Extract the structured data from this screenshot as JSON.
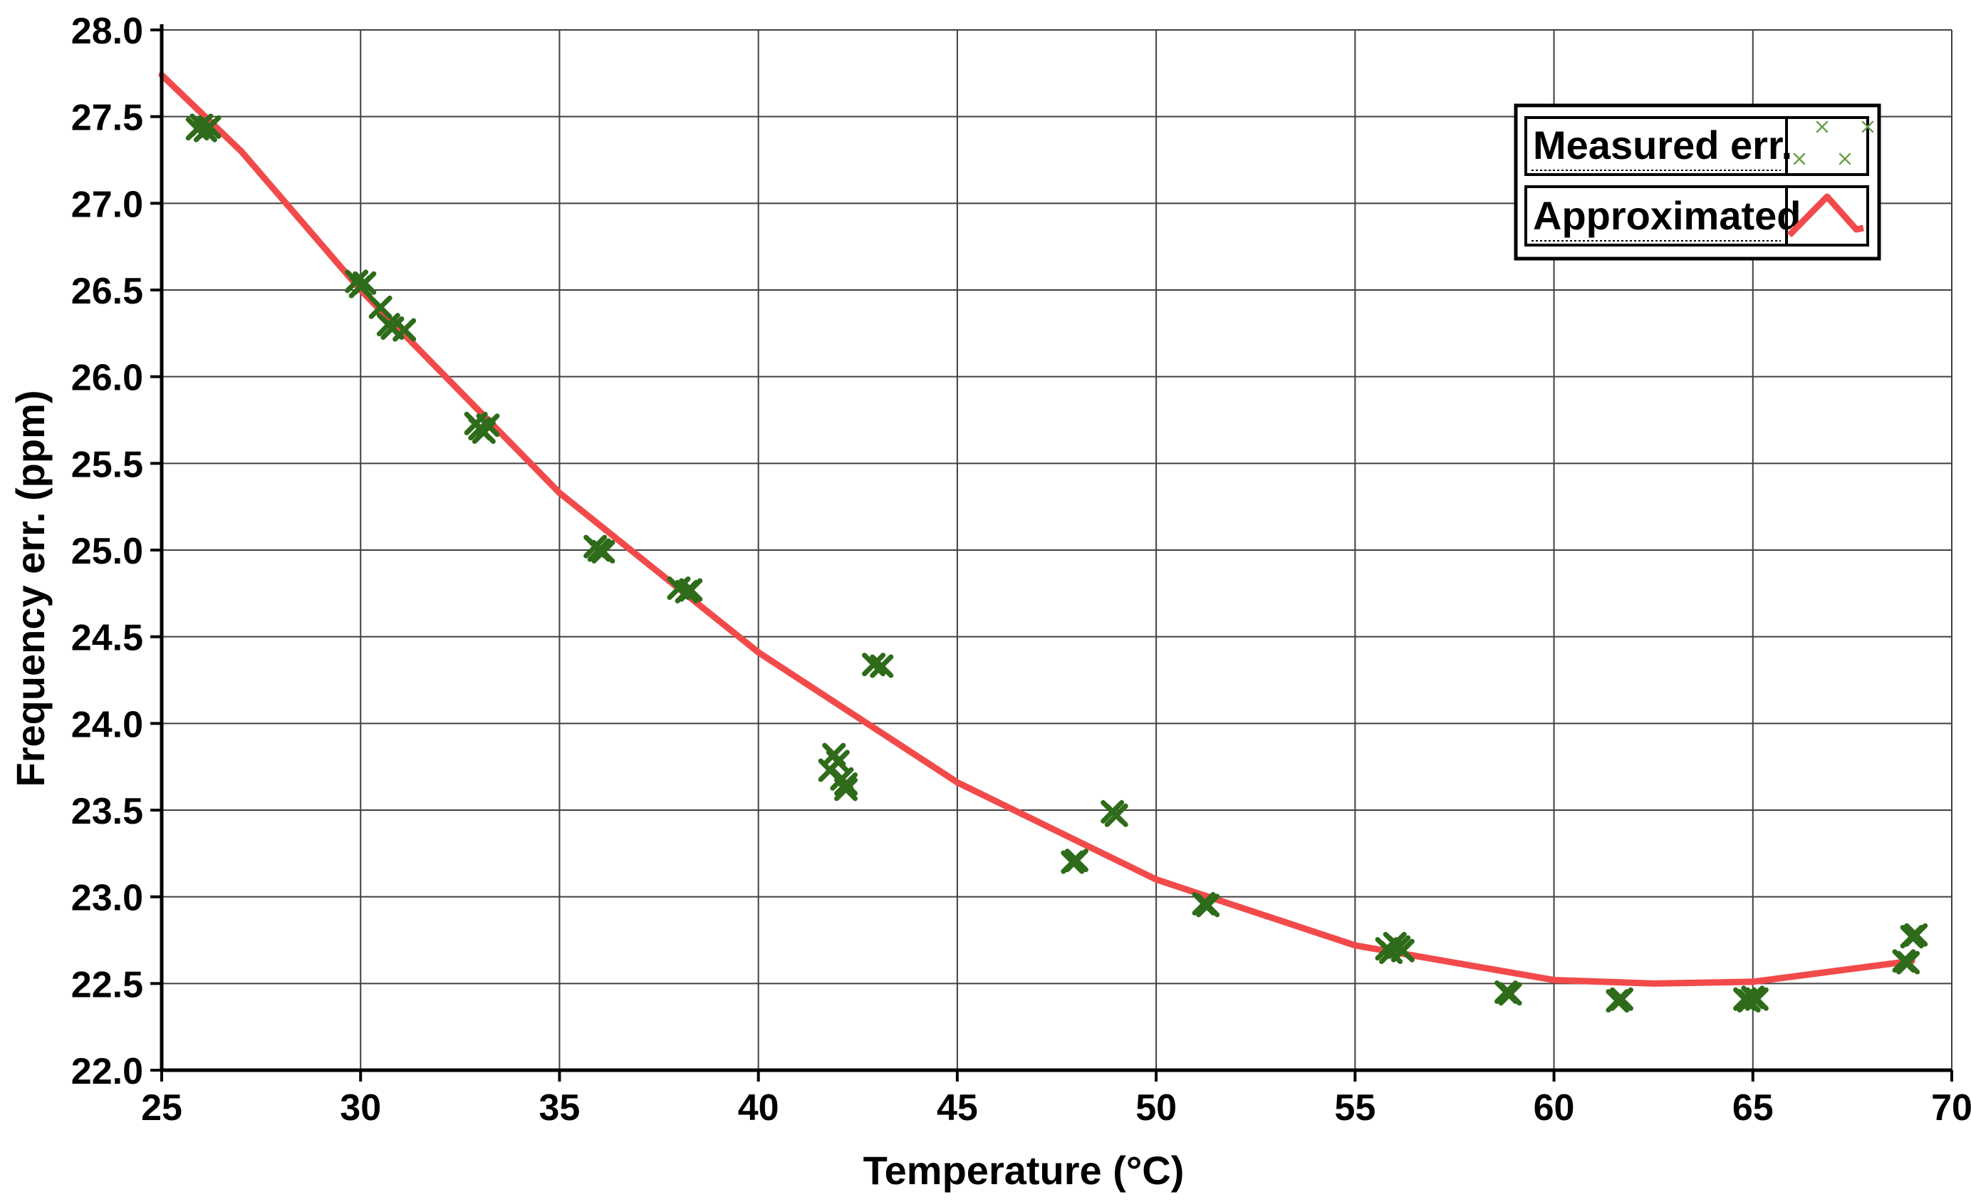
{
  "chart_data": {
    "type": "scatter",
    "xlabel": "Temperature  (°C)",
    "ylabel": "Frequency err.  (ppm)",
    "xlim": [
      25,
      70
    ],
    "ylim": [
      22.0,
      28.0
    ],
    "x_ticks": [
      "25",
      "30",
      "35",
      "40",
      "45",
      "50",
      "55",
      "60",
      "65",
      "70"
    ],
    "y_ticks": [
      "22.0",
      "22.5",
      "23.0",
      "23.5",
      "24.0",
      "24.5",
      "25.0",
      "25.5",
      "26.0",
      "26.5",
      "27.0",
      "27.5",
      "28.0"
    ],
    "grid": true,
    "legend_position": "top-right",
    "legend": [
      "Measured err.",
      "Approximated"
    ],
    "colors": {
      "measured": "#2e6b1a",
      "approximated": "#f24a4a",
      "grid": "#404040"
    },
    "series": [
      {
        "name": "Measured err.",
        "type": "scatter",
        "marker": "x",
        "points": [
          [
            25.9,
            27.43
          ],
          [
            26.0,
            27.45
          ],
          [
            26.1,
            27.42
          ],
          [
            26.2,
            27.44
          ],
          [
            29.9,
            26.55
          ],
          [
            30.0,
            26.52
          ],
          [
            30.1,
            26.54
          ],
          [
            30.5,
            26.4
          ],
          [
            30.7,
            26.3
          ],
          [
            30.8,
            26.28
          ],
          [
            31.1,
            26.27
          ],
          [
            32.9,
            25.73
          ],
          [
            33.0,
            25.7
          ],
          [
            33.1,
            25.68
          ],
          [
            33.2,
            25.72
          ],
          [
            35.9,
            25.02
          ],
          [
            36.0,
            25.0
          ],
          [
            36.1,
            24.99
          ],
          [
            38.0,
            24.78
          ],
          [
            38.2,
            24.76
          ],
          [
            38.3,
            24.77
          ],
          [
            41.8,
            23.73
          ],
          [
            41.9,
            23.82
          ],
          [
            42.0,
            23.78
          ],
          [
            42.1,
            23.68
          ],
          [
            42.2,
            23.62
          ],
          [
            42.2,
            23.65
          ],
          [
            42.9,
            24.34
          ],
          [
            43.1,
            24.33
          ],
          [
            47.9,
            23.2
          ],
          [
            48.0,
            23.21
          ],
          [
            48.9,
            23.49
          ],
          [
            49.0,
            23.47
          ],
          [
            51.2,
            22.96
          ],
          [
            51.3,
            22.95
          ],
          [
            55.8,
            22.7
          ],
          [
            55.9,
            22.68
          ],
          [
            56.0,
            22.73
          ],
          [
            56.1,
            22.71
          ],
          [
            56.2,
            22.69
          ],
          [
            58.8,
            22.45
          ],
          [
            58.9,
            22.44
          ],
          [
            61.6,
            22.4
          ],
          [
            61.7,
            22.41
          ],
          [
            64.8,
            22.41
          ],
          [
            64.9,
            22.4
          ],
          [
            65.0,
            22.42
          ],
          [
            65.1,
            22.41
          ],
          [
            68.8,
            22.63
          ],
          [
            68.9,
            22.62
          ],
          [
            69.0,
            22.77
          ],
          [
            69.1,
            22.78
          ]
        ]
      },
      {
        "name": "Approximated",
        "type": "line",
        "points": [
          [
            25,
            27.74
          ],
          [
            27,
            27.3
          ],
          [
            30,
            26.5
          ],
          [
            35,
            25.33
          ],
          [
            40,
            24.41
          ],
          [
            45,
            23.66
          ],
          [
            50,
            23.1
          ],
          [
            55,
            22.72
          ],
          [
            60,
            22.52
          ],
          [
            62.5,
            22.5
          ],
          [
            65,
            22.51
          ],
          [
            69,
            22.63
          ]
        ]
      }
    ]
  }
}
